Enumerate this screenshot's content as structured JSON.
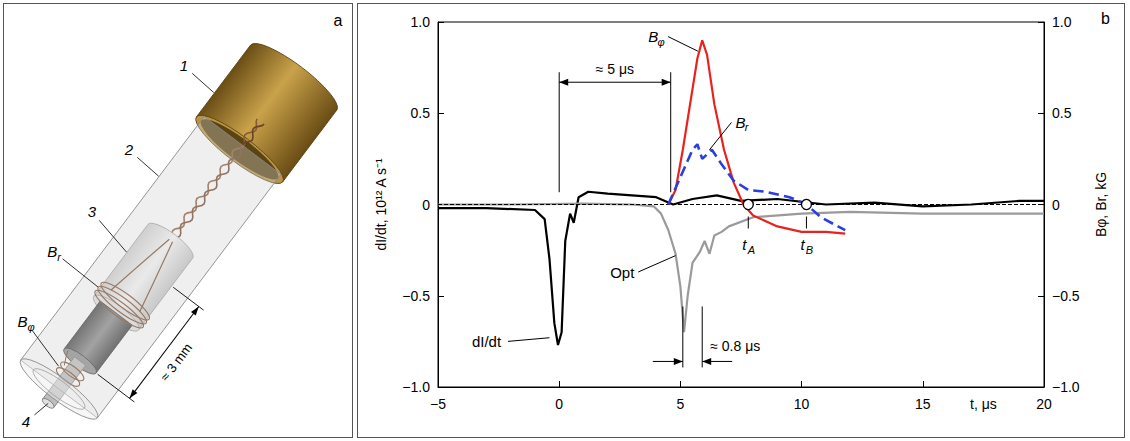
{
  "panel_a": {
    "letter": "a",
    "callouts": [
      "1",
      "2",
      "3",
      "Br",
      "Bφ",
      "4"
    ],
    "dimension": "≈ 3 mm"
  },
  "chart_data": {
    "type": "line",
    "panel_letter": "b",
    "x_label": "t, μs",
    "y_label": "dI/dt, 10¹² A s⁻¹",
    "y2_label": "Bφ, Br, kG",
    "xlim": [
      -5,
      20
    ],
    "xticks": [
      {
        "value": -5,
        "label": "−5"
      },
      0,
      5,
      10,
      15,
      20
    ],
    "ylim": [
      -1,
      1
    ],
    "yticks": [
      {
        "value": -1,
        "label": "−1.0"
      },
      {
        "value": -0.5,
        "label": "−0.5"
      },
      0,
      {
        "value": 0.5,
        "label": "0.5"
      },
      {
        "value": 1,
        "label": "1.0"
      }
    ],
    "y2lim": [
      -1,
      1
    ],
    "y2ticks": [
      {
        "value": -1,
        "label": "−1.0"
      },
      {
        "value": -0.5,
        "label": "−0.5"
      },
      0,
      {
        "value": 0.5,
        "label": "0.5"
      },
      {
        "value": 1,
        "label": "1.0"
      }
    ],
    "grid": false,
    "zero_line": {
      "y": 0,
      "line_style": "dashed"
    },
    "series": [
      {
        "name": "dI/dt",
        "color": "#000000",
        "line_style": "solid",
        "x": [
          -5,
          -3,
          -1,
          -0.6,
          -0.4,
          -0.2,
          -0.05,
          0.1,
          0.25,
          0.45,
          0.6,
          0.8,
          1.2,
          2,
          3,
          4,
          4.7,
          5.5,
          6.5,
          7.5,
          9,
          11,
          13,
          15,
          17,
          19,
          20
        ],
        "values": [
          -0.02,
          -0.02,
          -0.03,
          -0.08,
          -0.3,
          -0.65,
          -0.77,
          -0.7,
          -0.2,
          -0.05,
          -0.1,
          0.04,
          0.07,
          0.06,
          0.05,
          0.04,
          0.0,
          0.03,
          0.05,
          0.02,
          0.03,
          0.0,
          0.01,
          -0.01,
          0.0,
          0.02,
          0.02
        ],
        "callout": {
          "at": [
            -3.0,
            -0.75
          ],
          "to": [
            -0.4,
            -0.73
          ]
        }
      },
      {
        "name": "Opt",
        "color": "#9a9a9a",
        "line_style": "solid",
        "x": [
          -5,
          -2,
          1,
          3,
          3.9,
          4.2,
          4.5,
          4.8,
          5.0,
          5.15,
          5.3,
          5.5,
          5.8,
          6.0,
          6.2,
          6.4,
          6.7,
          7.0,
          8,
          10,
          12,
          15,
          18,
          20
        ],
        "values": [
          0.0,
          0.0,
          0.005,
          0.0,
          -0.01,
          -0.05,
          -0.14,
          -0.27,
          -0.45,
          -0.7,
          -0.5,
          -0.32,
          -0.26,
          -0.2,
          -0.27,
          -0.17,
          -0.15,
          -0.12,
          -0.07,
          -0.05,
          -0.04,
          -0.05,
          -0.05,
          -0.05
        ],
        "callout": {
          "at": [
            2.6,
            -0.37
          ],
          "to": [
            4.8,
            -0.28
          ]
        }
      },
      {
        "name": "Bφ",
        "color": "#e8231f",
        "line_style": "solid",
        "axis": "y2",
        "x": [
          4.5,
          4.8,
          5.1,
          5.4,
          5.7,
          5.9,
          6.1,
          6.4,
          6.8,
          7.2,
          7.6,
          8,
          9,
          10,
          11,
          11.8
        ],
        "values": [
          0.0,
          0.08,
          0.3,
          0.55,
          0.8,
          0.9,
          0.82,
          0.55,
          0.3,
          0.12,
          0.0,
          -0.06,
          -0.12,
          -0.15,
          -0.15,
          -0.16
        ],
        "callout": {
          "at": [
            4.0,
            0.92
          ],
          "to": [
            5.72,
            0.84
          ]
        }
      },
      {
        "name": "Br",
        "color": "#2a3fe0",
        "line_style": "dashed",
        "axis": "y2",
        "x": [
          4.5,
          5,
          5.5,
          5.7,
          5.9,
          6.3,
          6.7,
          7.2,
          7.8,
          8.5,
          9.5,
          10.2,
          10.8,
          11.5,
          11.8
        ],
        "values": [
          0.0,
          0.15,
          0.3,
          0.33,
          0.25,
          0.3,
          0.22,
          0.13,
          0.08,
          0.07,
          0.04,
          0.0,
          -0.07,
          -0.12,
          -0.14
        ],
        "callout": {
          "at": [
            7.6,
            0.45
          ],
          "to": [
            6.2,
            0.3
          ]
        }
      }
    ],
    "annotations": [
      {
        "text": "≈ 5 μs",
        "kind": "span",
        "x_from": 0,
        "x_to": 4.6,
        "y": 0.67
      },
      {
        "text": "≈ 0.8 μs",
        "kind": "pinch",
        "x_from": 5.1,
        "x_to": 5.9,
        "y": -0.86
      }
    ],
    "markers": [
      {
        "text": "tA",
        "x": 7.8,
        "y": 0
      },
      {
        "text": "tB",
        "x": 10.2,
        "y": 0
      }
    ]
  }
}
